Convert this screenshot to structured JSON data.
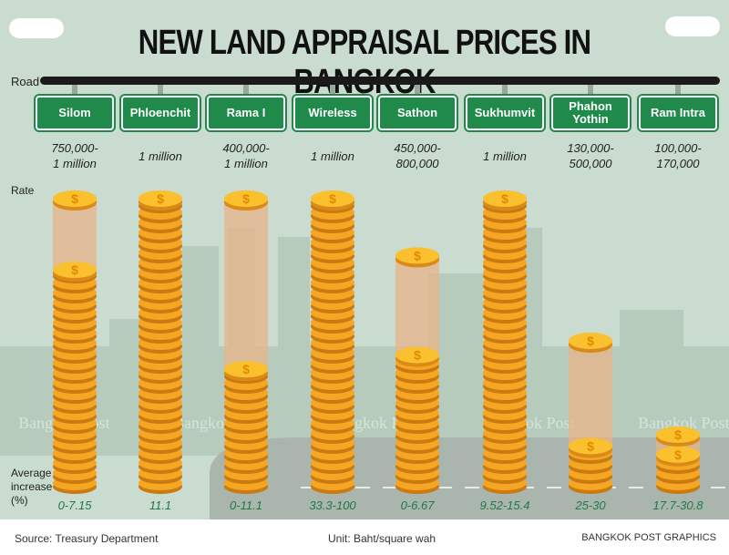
{
  "title": "NEW LAND APPRAISAL PRICES IN BANGKOK",
  "road_label": "Road",
  "rate_label": "Rate",
  "increase_label": [
    "Average",
    "increase",
    "(%)"
  ],
  "watermark": "Bangkok Post",
  "colors": {
    "background": "#c9dccf",
    "sign": "#1f8a4a",
    "coin": "#f5a623",
    "range_bar": "#e8b48a",
    "increase_text": "#1f7a45"
  },
  "chart_data": {
    "type": "bar",
    "unit": "Unit: Baht/square wah",
    "categories": [
      "Silom",
      "Phloenchit",
      "Rama I",
      "Wireless",
      "Sathon",
      "Sukhumvit",
      "Phahon Yothin",
      "Ram Intra"
    ],
    "rate_labels": [
      "750,000-\n1 million",
      "1 million",
      "400,000-\n1 million",
      "1 million",
      "450,000-\n800,000",
      "1 million",
      "130,000-\n500,000",
      "100,000-\n170,000"
    ],
    "rate_min": [
      750000,
      1000000,
      400000,
      1000000,
      450000,
      1000000,
      130000,
      100000
    ],
    "rate_max": [
      1000000,
      1000000,
      1000000,
      1000000,
      800000,
      1000000,
      500000,
      170000
    ],
    "average_increase": [
      "0-7.15",
      "11.1",
      "0-11.1",
      "33.3-100",
      "0-6.67",
      "9.52-15.4",
      "25-30",
      "17.7-30.8"
    ]
  },
  "footer": {
    "source": "Source:  Treasury Department",
    "unit": "Unit: Baht/square wah",
    "credit": "BANGKOK POST GRAPHICS"
  }
}
